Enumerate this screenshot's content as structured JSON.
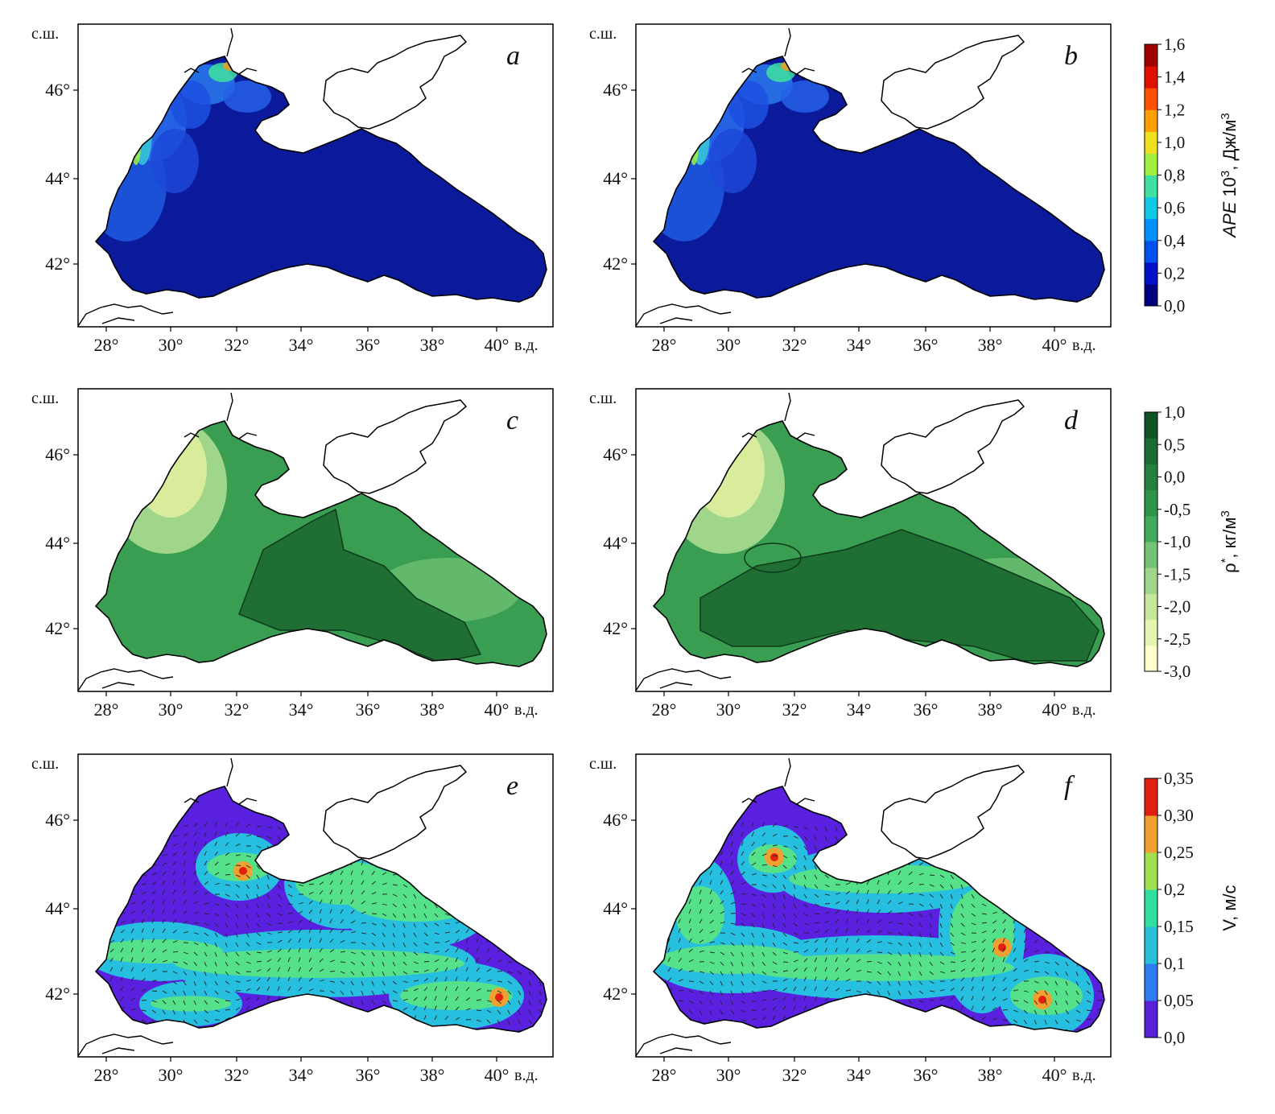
{
  "figure": {
    "lat_ticks": [
      "46°",
      "44°",
      "42°"
    ],
    "lon_ticks": [
      "28°",
      "30°",
      "32°",
      "34°",
      "36°",
      "38°",
      "40°"
    ],
    "lat_axis_label": "с.ш.",
    "lon_axis_label": "в.д."
  },
  "panels": [
    {
      "letter": "a",
      "field": "ape"
    },
    {
      "letter": "b",
      "field": "ape"
    },
    {
      "letter": "c",
      "field": "rho"
    },
    {
      "letter": "d",
      "field": "rho"
    },
    {
      "letter": "e",
      "field": "vel"
    },
    {
      "letter": "f",
      "field": "vel"
    }
  ],
  "colorbars": {
    "ape": {
      "title_main": "APE",
      "title_rest": " 10",
      "title_sup": "3",
      "title_unit": ", Дж/м",
      "title_unit_sup": "3",
      "labels": [
        "1,6",
        "1,4",
        "1,2",
        "1,0",
        "0,8",
        "0,6",
        "0,4",
        "0,2",
        "0,0"
      ],
      "colors": [
        "#00007f",
        "#0010c8",
        "#0050f0",
        "#0090ff",
        "#10c8e8",
        "#40e0a0",
        "#a0f040",
        "#f0e020",
        "#ffa000",
        "#ff5000",
        "#e01000",
        "#a00000"
      ]
    },
    "rho": {
      "title_main": "ρ",
      "title_sup": "*",
      "title_unit": ", кг/м",
      "title_unit_sup": "3",
      "labels": [
        "1,0",
        "0,5",
        "0,0",
        "-0,5",
        "-1,0",
        "-1,5",
        "-2,0",
        "-2,5",
        "-3,0"
      ],
      "colors": [
        "#ffffcc",
        "#e5f5b0",
        "#c7e89a",
        "#9fd68a",
        "#74c476",
        "#41ab5d",
        "#2e9449",
        "#23803d",
        "#1a6b31",
        "#0e5424"
      ]
    },
    "vel": {
      "title_main": "V",
      "title_unit": ", м/с",
      "labels": [
        "0,35",
        "0,30",
        "0,25",
        "0,2",
        "0,15",
        "0,1",
        "0,05",
        "0,0"
      ],
      "colors": [
        "#5a1fd8",
        "#2f7df0",
        "#28c0d8",
        "#2fe0a0",
        "#a0e050",
        "#f0a030",
        "#e02010"
      ]
    }
  },
  "colors": {
    "ape_sea": "#0a1a9a",
    "rho_sea": "#3a9e52",
    "rho_dark": "#1f6f34",
    "rho_light": "#d8ec9c",
    "vel_sea": "#5a20e0",
    "vel_cyan": "#27bfe0",
    "vel_green": "#55e08a",
    "arrow": "#222222"
  }
}
